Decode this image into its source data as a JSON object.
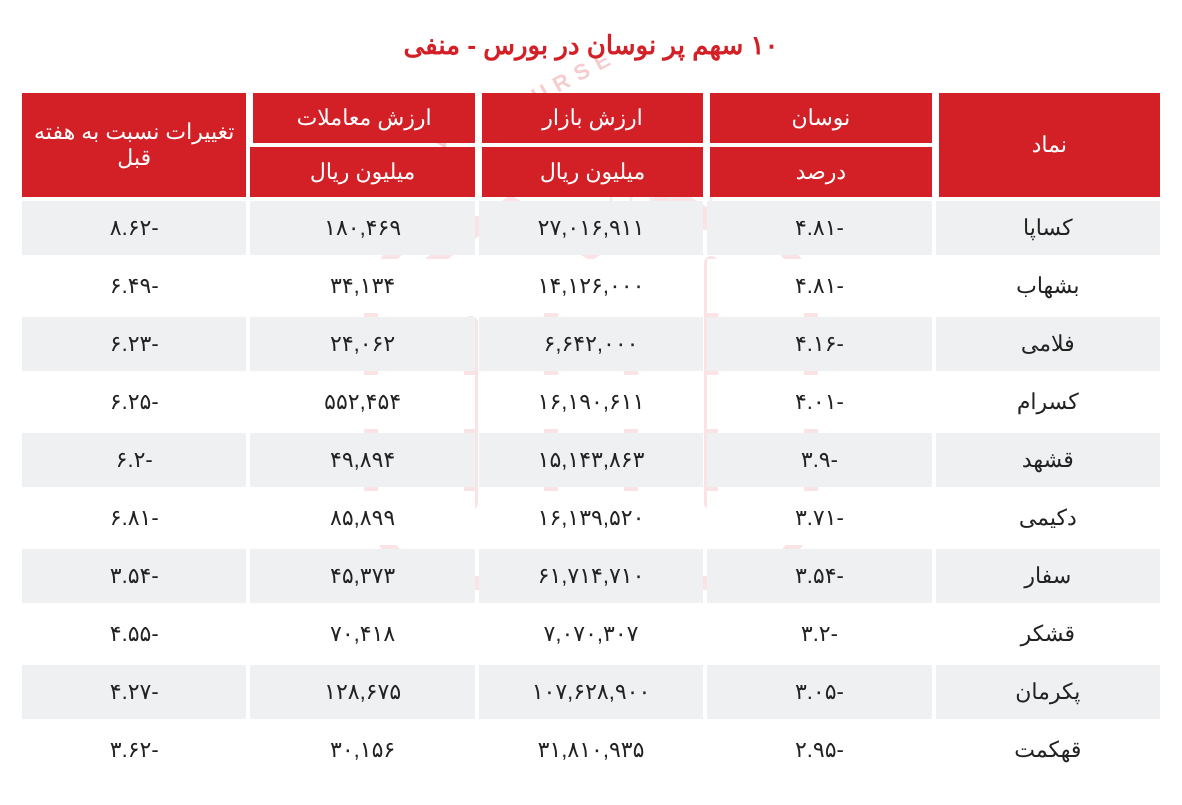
{
  "page": {
    "title": "۱۰ سهم پر نوسان در بورس - منفی",
    "title_color": "#d32027",
    "background_color": "#ffffff"
  },
  "table": {
    "type": "table",
    "header_bg": "#d32027",
    "header_fg": "#ffffff",
    "row_odd_bg": "#eef0f1",
    "row_even_bg": "#ffffff",
    "text_color": "#222222",
    "font_size_header": 22,
    "font_size_cell": 22,
    "columns": [
      {
        "key": "symbol",
        "label_top": "نماد",
        "label_sub": "",
        "rowspan": 2
      },
      {
        "key": "volatility",
        "label_top": "نوسان",
        "label_sub": "درصد"
      },
      {
        "key": "market_value",
        "label_top": "ارزش بازار",
        "label_sub": "میلیون ریال"
      },
      {
        "key": "trade_value",
        "label_top": "ارزش معاملات",
        "label_sub": "میلیون ریال"
      },
      {
        "key": "change_prev_week",
        "label_top": "تغییرات نسبت به هفته قبل",
        "label_sub": "",
        "rowspan": 2
      }
    ],
    "rows": [
      {
        "symbol": "کساپا",
        "volatility": "-۴.۸۱",
        "market_value": "۲۷,۰۱۶,۹۱۱",
        "trade_value": "۱۸۰,۴۶۹",
        "change_prev_week": "-۸.۶۲"
      },
      {
        "symbol": "بشهاب",
        "volatility": "-۴.۸۱",
        "market_value": "۱۴,۱۲۶,۰۰۰",
        "trade_value": "۳۴,۱۳۴",
        "change_prev_week": "-۶.۴۹"
      },
      {
        "symbol": "فلامی",
        "volatility": "-۴.۱۶",
        "market_value": "۶,۶۴۲,۰۰۰",
        "trade_value": "۲۴,۰۶۲",
        "change_prev_week": "-۶.۲۳"
      },
      {
        "symbol": "کسرام",
        "volatility": "-۴.۰۱",
        "market_value": "۱۶,۱۹۰,۶۱۱",
        "trade_value": "۵۵۲,۴۵۴",
        "change_prev_week": "-۶.۲۵"
      },
      {
        "symbol": "قشهد",
        "volatility": "-۳.۹",
        "market_value": "۱۵,۱۴۳,۸۶۳",
        "trade_value": "۴۹,۸۹۴",
        "change_prev_week": "-۶.۲"
      },
      {
        "symbol": "دکیمی",
        "volatility": "-۳.۷۱",
        "market_value": "۱۶,۱۳۹,۵۲۰",
        "trade_value": "۸۵,۸۹۹",
        "change_prev_week": "-۶.۸۱"
      },
      {
        "symbol": "سفار",
        "volatility": "-۳.۵۴",
        "market_value": "۶۱,۷۱۴,۷۱۰",
        "trade_value": "۴۵,۳۷۳",
        "change_prev_week": "-۳.۵۴"
      },
      {
        "symbol": "قشکر",
        "volatility": "-۳.۲",
        "market_value": "۷,۰۷۰,۳۰۷",
        "trade_value": "۷۰,۴۱۸",
        "change_prev_week": "-۴.۵۵"
      },
      {
        "symbol": "پکرمان",
        "volatility": "-۳.۰۵",
        "market_value": "۱۰۷,۶۲۸,۹۰۰",
        "trade_value": "۱۲۸,۶۷۵",
        "change_prev_week": "-۴.۲۷"
      },
      {
        "symbol": "قهکمت",
        "volatility": "-۲.۹۵",
        "market_value": "۳۱,۸۱۰,۹۳۵",
        "trade_value": "۳۰,۱۵۶",
        "change_prev_week": "-۳.۶۲"
      }
    ]
  },
  "watermark": {
    "text": "SEDAYE BOURSE",
    "stroke_color": "#d32027",
    "opacity": 0.12
  }
}
